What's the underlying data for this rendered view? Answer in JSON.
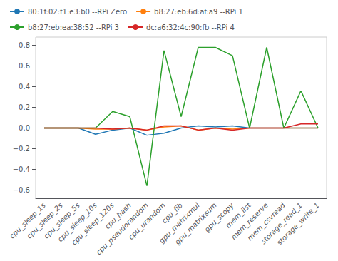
{
  "chart_data": {
    "type": "line",
    "categories": [
      "cpu_sleep_1s",
      "cpu_sleep_2s",
      "cpu_sleep_5s",
      "cpu_sleep_10s",
      "cpu_sleep_120s",
      "cpu_hash",
      "cpu_pseudorandom",
      "cpu_urandom",
      "cpu_fib",
      "gpu_matrixmul",
      "gpu_matrixsum",
      "gpu_scopy",
      "mem_list",
      "mem_reserve",
      "mem_csvread",
      "storage_read_1",
      "storage_write_1"
    ],
    "series": [
      {
        "name": "80:1f:02:f1:e3:b0 --RPi Zero",
        "color": "#1f77b4",
        "values": [
          0.0,
          0.0,
          0.0,
          -0.06,
          -0.02,
          0.0,
          -0.07,
          -0.05,
          0.0,
          0.02,
          0.01,
          0.02,
          0.0,
          0.0,
          0.0,
          0.0,
          0.0
        ]
      },
      {
        "name": "b8:27:eb:6d:af:a9 --RPi 1",
        "color": "#ff7f0e",
        "values": [
          0.0,
          0.0,
          0.0,
          -0.01,
          -0.01,
          0.0,
          -0.02,
          0.01,
          0.02,
          -0.02,
          0.0,
          -0.01,
          0.0,
          0.0,
          0.0,
          0.0,
          0.0
        ]
      },
      {
        "name": "b8:27:eb:ea:38:52 --RPi 3",
        "color": "#2ca02c",
        "values": [
          0.0,
          0.0,
          0.0,
          0.0,
          0.16,
          0.11,
          -0.56,
          0.75,
          0.11,
          0.78,
          0.78,
          0.7,
          0.0,
          0.78,
          0.0,
          0.36,
          0.0
        ]
      },
      {
        "name": "dc:a6:32:4c:90:fb --RPi 4",
        "color": "#d62728",
        "values": [
          0.0,
          0.0,
          0.0,
          0.0,
          -0.01,
          0.0,
          -0.02,
          0.02,
          0.02,
          -0.02,
          0.0,
          -0.02,
          0.0,
          0.0,
          0.0,
          0.04,
          0.04
        ]
      }
    ],
    "ylim": [
      -0.68,
      0.88
    ],
    "yticks": [
      {
        "value": -0.6,
        "label": "−0.6"
      },
      {
        "value": -0.4,
        "label": "−0.4"
      },
      {
        "value": -0.2,
        "label": "−0.2"
      },
      {
        "value": 0.0,
        "label": "0.0"
      },
      0.2,
      0.4,
      0.6,
      0.8
    ],
    "grid": false,
    "legend": "upper left"
  }
}
